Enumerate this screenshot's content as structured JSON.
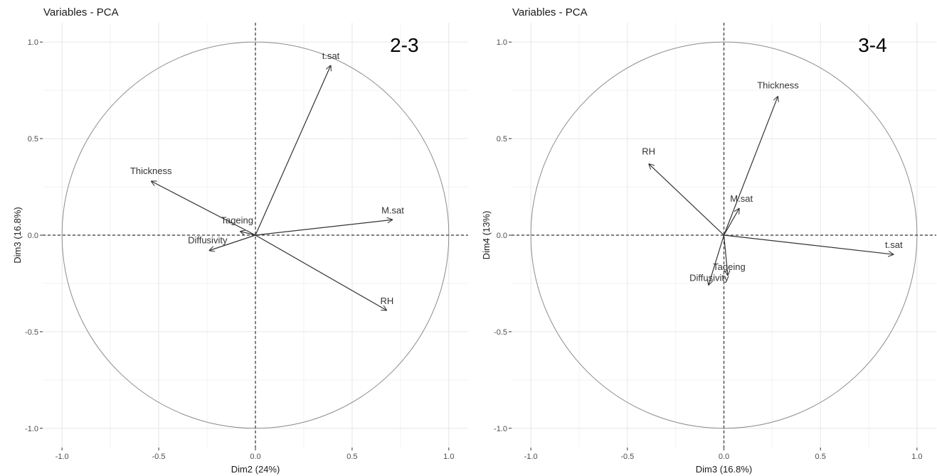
{
  "chart_data": [
    {
      "type": "scatter",
      "title": "Variables - PCA",
      "annotation": "2-3",
      "xlabel": "Dim2 (24%)",
      "ylabel": "Dim3 (16.8%)",
      "xlim": [
        -1.1,
        1.1
      ],
      "ylim": [
        -1.1,
        1.1
      ],
      "xticks": [
        -1.0,
        -0.5,
        0.0,
        0.5,
        1.0
      ],
      "yticks": [
        -1.0,
        -0.5,
        0.0,
        0.5,
        1.0
      ],
      "xtick_labels": [
        "-1.0",
        "-0.5",
        "0.0",
        "0.5",
        "1.0"
      ],
      "ytick_labels": [
        "-1.0",
        "-0.5",
        "0.0",
        "0.5",
        "1.0"
      ],
      "grid": true,
      "unit_circle": true,
      "vectors": [
        {
          "name": "t.sat",
          "x": 0.39,
          "y": 0.88
        },
        {
          "name": "M.sat",
          "x": 0.71,
          "y": 0.08
        },
        {
          "name": "Thickness",
          "x": -0.54,
          "y": 0.28
        },
        {
          "name": "Tageing",
          "x": -0.08,
          "y": 0.02
        },
        {
          "name": "Diffusivity",
          "x": -0.24,
          "y": -0.08
        },
        {
          "name": "RH",
          "x": 0.68,
          "y": -0.39
        }
      ]
    },
    {
      "type": "scatter",
      "title": "Variables - PCA",
      "annotation": "3-4",
      "xlabel": "Dim3 (16.8%)",
      "ylabel": "Dim4 (13%)",
      "xlim": [
        -1.1,
        1.1
      ],
      "ylim": [
        -1.1,
        1.1
      ],
      "xticks": [
        -1.0,
        -0.5,
        0.0,
        0.5,
        1.0
      ],
      "yticks": [
        -1.0,
        -0.5,
        0.0,
        0.5,
        1.0
      ],
      "xtick_labels": [
        "-1.0",
        "-0.5",
        "0.0",
        "0.5",
        "1.0"
      ],
      "ytick_labels": [
        "-1.0",
        "-0.5",
        "0.0",
        "0.5",
        "1.0"
      ],
      "grid": true,
      "unit_circle": true,
      "vectors": [
        {
          "name": "Thickness",
          "x": 0.28,
          "y": 0.72
        },
        {
          "name": "RH",
          "x": -0.39,
          "y": 0.37
        },
        {
          "name": "M.sat",
          "x": 0.08,
          "y": 0.14
        },
        {
          "name": "t.sat",
          "x": 0.88,
          "y": -0.1
        },
        {
          "name": "Tageing",
          "x": 0.02,
          "y": -0.21
        },
        {
          "name": "Diffusivity",
          "x": -0.08,
          "y": -0.26
        }
      ]
    }
  ]
}
